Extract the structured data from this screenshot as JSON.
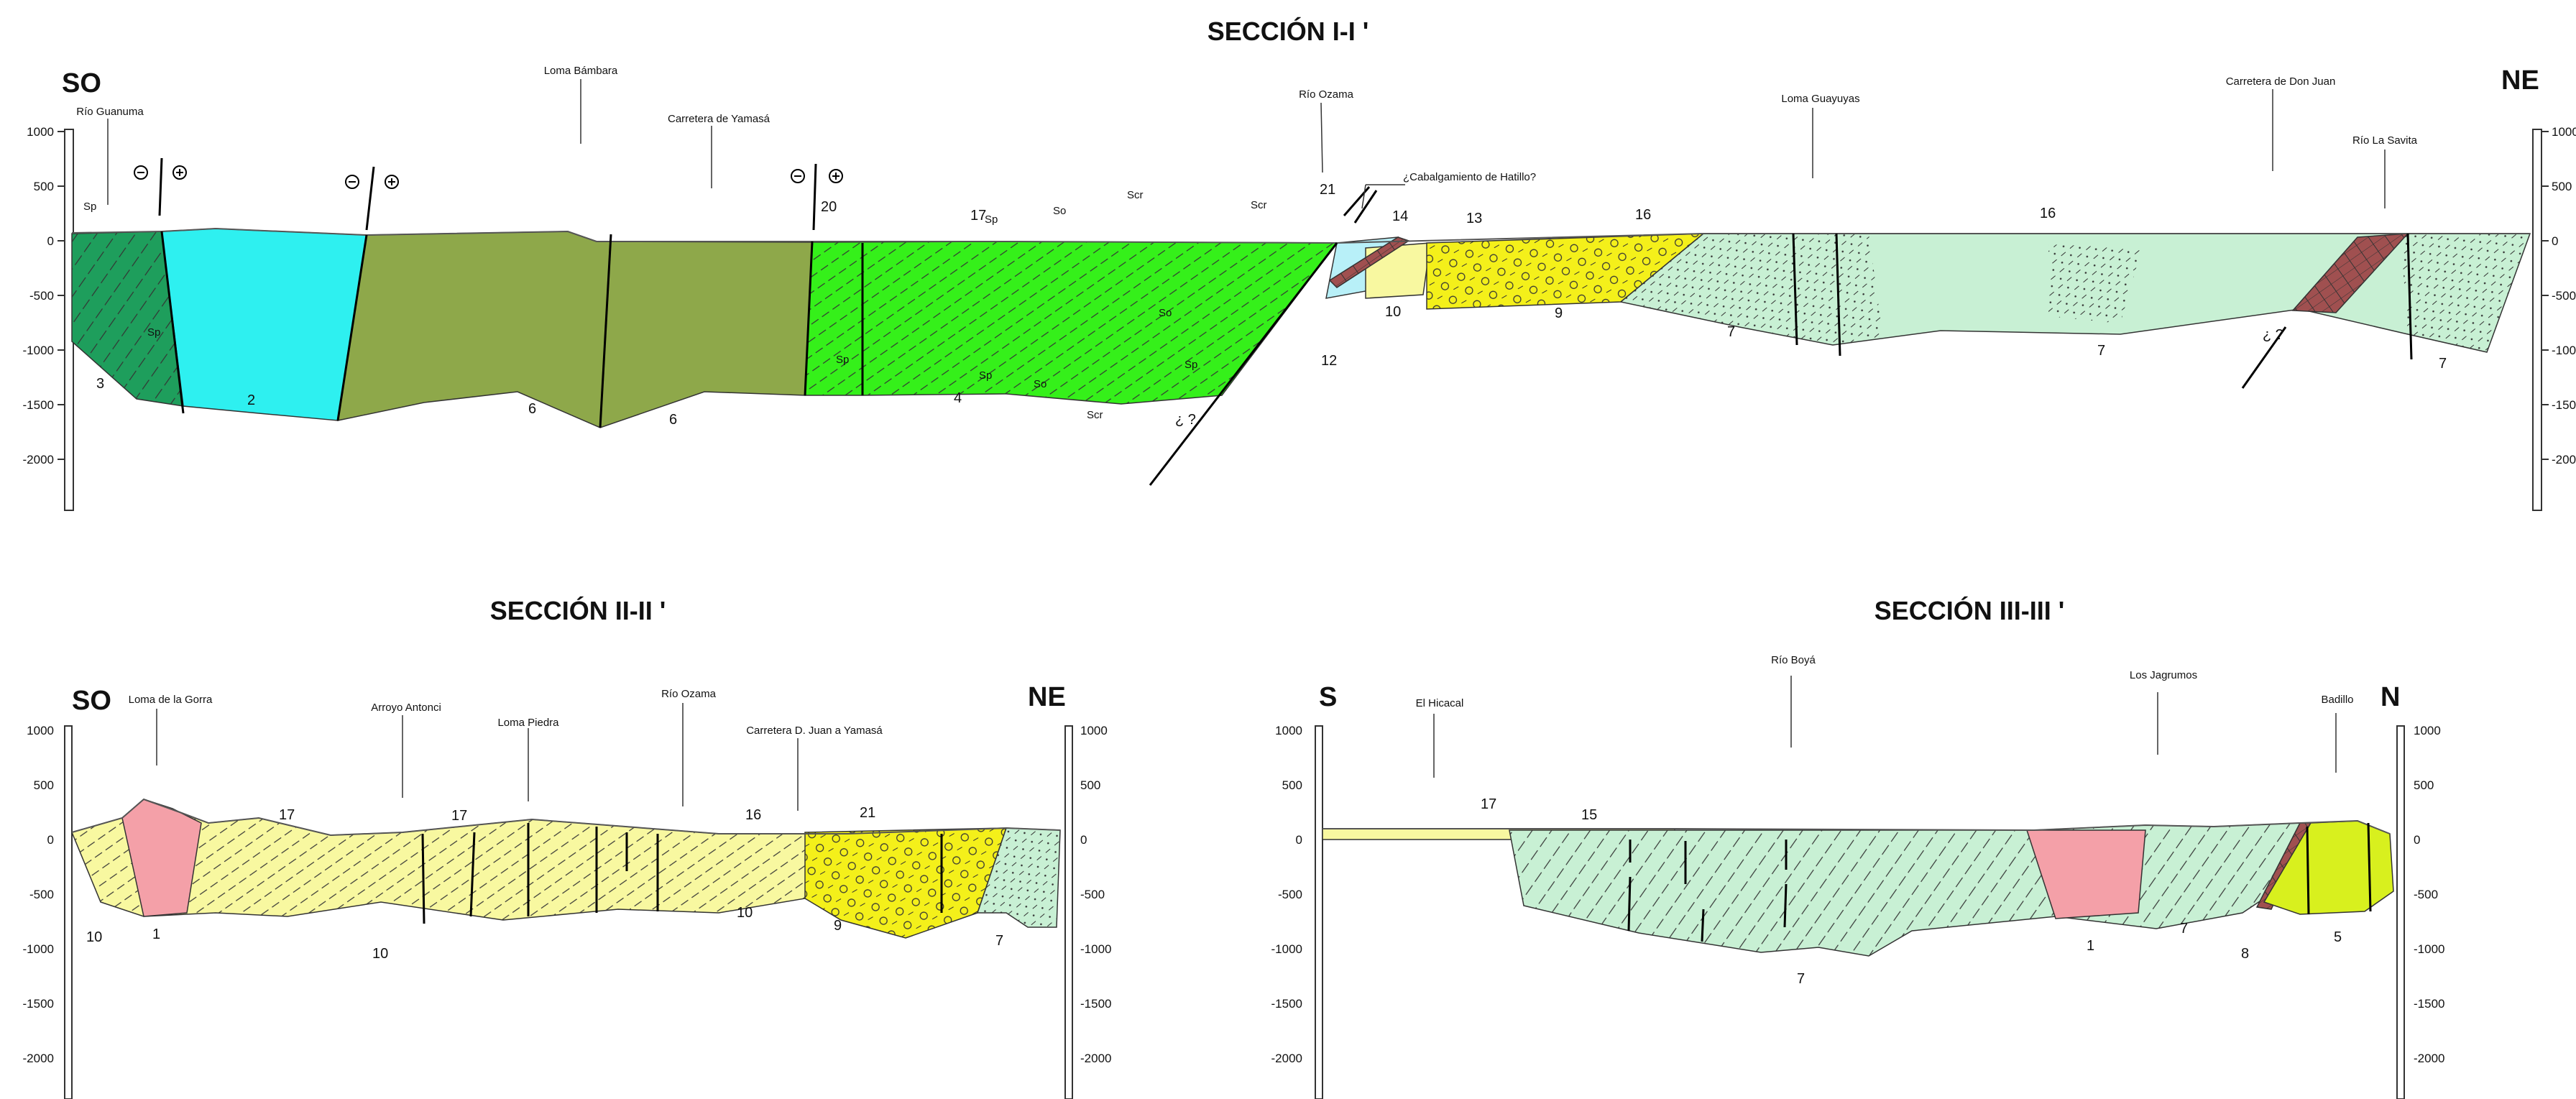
{
  "sections": [
    {
      "title": "SECCIÓN I-I '",
      "left_orientation": "SO",
      "right_orientation": "NE",
      "scale_ticks": [
        "1000",
        "500",
        "0",
        "-500",
        "-1000",
        "-1500",
        "-2000"
      ],
      "place_names": [
        "Río Guanuma",
        "Loma Bámbara",
        "Carretera de Yamasá",
        "Río Ozama",
        "Loma Guayuyas",
        "Carretera de Don Juan",
        "Río La Savita"
      ],
      "annotation": "¿Cabalgamiento de Hatillo?",
      "unit_numbers": [
        "3",
        "2",
        "6",
        "6",
        "4",
        "20",
        "17",
        "21",
        "14",
        "13",
        "16",
        "16",
        "10",
        "9",
        "12",
        "7",
        "7",
        "7"
      ],
      "symbol_labels": [
        "Sp",
        "Sp",
        "Sp",
        "Sp",
        "Sp",
        "So",
        "So",
        "So",
        "Scr",
        "Scr",
        "Scr",
        "Sp"
      ],
      "fault_query": "¿ ?",
      "fault_query_2": "¿ ?"
    },
    {
      "title": "SECCIÓN II-II '",
      "left_orientation": "SO",
      "right_orientation": "NE",
      "scale_ticks": [
        "1000",
        "500",
        "0",
        "-500",
        "-1000",
        "-1500",
        "-2000"
      ],
      "place_names": [
        "Loma de la Gorra",
        "Arroyo Antonci",
        "Loma Piedra",
        "Río Ozama",
        "Carretera D. Juan a Yamasá"
      ],
      "unit_numbers": [
        "17",
        "17",
        "16",
        "21",
        "10",
        "1",
        "10",
        "10",
        "9",
        "7"
      ]
    },
    {
      "title": "SECCIÓN III-III '",
      "left_orientation": "S",
      "right_orientation": "N",
      "scale_ticks": [
        "1000",
        "500",
        "0",
        "-500",
        "-1000",
        "-1500",
        "-2000"
      ],
      "place_names": [
        "El Hicacal",
        "Río Boyá",
        "Los Jagrumos",
        "Badillo"
      ],
      "unit_numbers": [
        "17",
        "15",
        "7",
        "1",
        "7",
        "8",
        "5"
      ]
    }
  ],
  "colors": {
    "unit_3": "#1e9e5c",
    "unit_2": "#2ef0f0",
    "unit_6": "#8ea84a",
    "unit_4": "#35f01a",
    "unit_7": "#c8f0d4",
    "unit_9": "#f4f01a",
    "unit_10": "#f8f8a0",
    "unit_1": "#f4a0a8",
    "unit_5": "#d8f01e",
    "unit_8": "#a05050",
    "unit_12": "#b8f0f8"
  }
}
